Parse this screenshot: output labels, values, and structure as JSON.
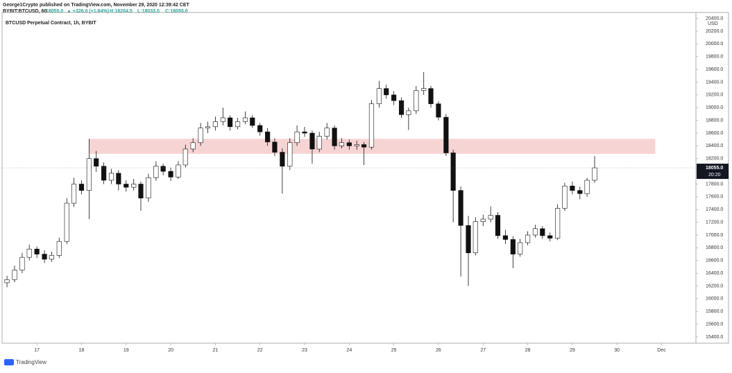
{
  "header": {
    "byline": "George1Crypto published on TradingView.com, November 29, 2020 12:39:42 CET",
    "symbol": "BYBIT:BTCUSD, 60",
    "price": "18055.0",
    "change": "▲ +326.0 (+1.84%)",
    "high": "H:18204.5",
    "low": "L:18033.0",
    "close": "C:18055.0"
  },
  "footer": {
    "brand": "TradingView"
  },
  "chart_data": {
    "type": "candlestick",
    "title": "BTCUSD Perpetual Contract, 1h, BYBIT",
    "y_unit": "USD",
    "up_color": "#ffffff",
    "down_color": "#111111",
    "wick_color": "#111111",
    "grid": false,
    "xlim": [
      16.22,
      31.77
    ],
    "ylim": [
      15302,
      20494
    ],
    "xticks": [
      17,
      18,
      19,
      20,
      21,
      22,
      23,
      24,
      25,
      26,
      27,
      28,
      29,
      30,
      {
        "value": 31,
        "label": "Dec"
      }
    ],
    "yticks": [
      {
        "value": 15400,
        "label": "15400.0"
      },
      {
        "value": 15600,
        "label": "15600.0"
      },
      {
        "value": 15800,
        "label": "15800.0"
      },
      {
        "value": 16000,
        "label": "16000.0"
      },
      {
        "value": 16200,
        "label": "16200.0"
      },
      {
        "value": 16400,
        "label": "16400.0"
      },
      {
        "value": 16600,
        "label": "16600.0"
      },
      {
        "value": 16800,
        "label": "16800.0"
      },
      {
        "value": 17000,
        "label": "17000.0"
      },
      {
        "value": 17200,
        "label": "17200.0"
      },
      {
        "value": 17400,
        "label": "17400.0"
      },
      {
        "value": 17600,
        "label": "17600.0"
      },
      {
        "value": 17800,
        "label": "17800.0"
      },
      {
        "value": 18000,
        "label": "18000.0"
      },
      {
        "value": 18200,
        "label": "18200.0"
      },
      {
        "value": 18400,
        "label": "18400.0"
      },
      {
        "value": 18600,
        "label": "18600.0"
      },
      {
        "value": 18800,
        "label": "18800.0"
      },
      {
        "value": 19000,
        "label": "19000.0"
      },
      {
        "value": 19200,
        "label": "19200.0"
      },
      {
        "value": 19400,
        "label": "19400.0"
      },
      {
        "value": 19600,
        "label": "19600.0"
      },
      {
        "value": 19800,
        "label": "19800.0"
      },
      {
        "value": 20000,
        "label": "20000.0"
      },
      {
        "value": 20200,
        "label": "20200.0"
      },
      {
        "value": 20400,
        "label": "20400.0"
      }
    ],
    "zone": {
      "low": 18275,
      "high": 18510,
      "x_start": 18.17,
      "x_end": 30.86,
      "color": "#f6cccc"
    },
    "last_price": {
      "value": 18055,
      "label": "18055.0"
    },
    "countdown": "20:20",
    "x": [
      16.33,
      16.5,
      16.67,
      16.83,
      17,
      17.17,
      17.33,
      17.5,
      17.67,
      17.83,
      18,
      18.17,
      18.33,
      18.5,
      18.67,
      18.83,
      19,
      19.17,
      19.33,
      19.5,
      19.67,
      19.83,
      20,
      20.17,
      20.33,
      20.5,
      20.67,
      20.83,
      21,
      21.17,
      21.33,
      21.5,
      21.67,
      21.83,
      22,
      22.17,
      22.33,
      22.5,
      22.67,
      22.83,
      23,
      23.17,
      23.33,
      23.5,
      23.67,
      23.83,
      24,
      24.17,
      24.33,
      24.5,
      24.67,
      24.83,
      25,
      25.17,
      25.33,
      25.5,
      25.67,
      25.83,
      26,
      26.17,
      26.33,
      26.5,
      26.67,
      26.83,
      27,
      27.17,
      27.33,
      27.5,
      27.67,
      27.83,
      28,
      28.17,
      28.33,
      28.5,
      28.67,
      28.83,
      29,
      29.17,
      29.33,
      29.5
    ],
    "ohlc": [
      [
        16250,
        16360,
        16180,
        16300
      ],
      [
        16300,
        16520,
        16260,
        16450
      ],
      [
        16450,
        16720,
        16400,
        16650
      ],
      [
        16650,
        16850,
        16600,
        16780
      ],
      [
        16780,
        16820,
        16640,
        16700
      ],
      [
        16700,
        16760,
        16560,
        16620
      ],
      [
        16620,
        16740,
        16580,
        16680
      ],
      [
        16680,
        16960,
        16640,
        16900
      ],
      [
        16900,
        17580,
        16860,
        17500
      ],
      [
        17500,
        17900,
        17440,
        17800
      ],
      [
        17800,
        17860,
        17640,
        17700
      ],
      [
        17700,
        18510,
        17250,
        18200
      ],
      [
        18200,
        18320,
        17990,
        18080
      ],
      [
        18080,
        18140,
        17800,
        17860
      ],
      [
        17860,
        18040,
        17800,
        17970
      ],
      [
        17970,
        18020,
        17700,
        17800
      ],
      [
        17800,
        17860,
        17680,
        17750
      ],
      [
        17750,
        17880,
        17700,
        17800
      ],
      [
        17800,
        17840,
        17380,
        17580
      ],
      [
        17580,
        17960,
        17520,
        17900
      ],
      [
        17900,
        18160,
        17850,
        18080
      ],
      [
        18080,
        18120,
        17940,
        18000
      ],
      [
        18000,
        18060,
        17850,
        17910
      ],
      [
        17910,
        18160,
        17880,
        18100
      ],
      [
        18100,
        18420,
        18060,
        18350
      ],
      [
        18350,
        18520,
        18300,
        18450
      ],
      [
        18450,
        18760,
        18400,
        18680
      ],
      [
        18680,
        18780,
        18600,
        18700
      ],
      [
        18700,
        18860,
        18640,
        18780
      ],
      [
        18780,
        19000,
        18720,
        18840
      ],
      [
        18840,
        18880,
        18640,
        18700
      ],
      [
        18700,
        18840,
        18660,
        18780
      ],
      [
        18780,
        18940,
        18740,
        18840
      ],
      [
        18840,
        18880,
        18680,
        18720
      ],
      [
        18720,
        18760,
        18560,
        18620
      ],
      [
        18620,
        18680,
        18400,
        18460
      ],
      [
        18460,
        18520,
        18240,
        18300
      ],
      [
        18300,
        18360,
        17650,
        18080
      ],
      [
        18080,
        18520,
        18020,
        18450
      ],
      [
        18450,
        18720,
        18400,
        18620
      ],
      [
        18620,
        18700,
        18540,
        18600
      ],
      [
        18600,
        18640,
        18120,
        18350
      ],
      [
        18350,
        18620,
        18300,
        18550
      ],
      [
        18550,
        18760,
        18500,
        18680
      ],
      [
        18680,
        18720,
        18340,
        18400
      ],
      [
        18400,
        18520,
        18360,
        18450
      ],
      [
        18450,
        18500,
        18340,
        18400
      ],
      [
        18400,
        18480,
        18340,
        18420
      ],
      [
        18420,
        18460,
        18100,
        18380
      ],
      [
        18380,
        19120,
        18340,
        19060
      ],
      [
        19060,
        19420,
        19000,
        19300
      ],
      [
        19300,
        19360,
        19140,
        19200
      ],
      [
        19200,
        19260,
        19040,
        19110
      ],
      [
        19110,
        19160,
        18840,
        18890
      ],
      [
        18890,
        19000,
        18650,
        18950
      ],
      [
        18950,
        19340,
        18900,
        19270
      ],
      [
        19270,
        19560,
        19200,
        19300
      ],
      [
        19300,
        19340,
        19000,
        19060
      ],
      [
        19060,
        19100,
        18800,
        18850
      ],
      [
        18850,
        18900,
        18240,
        18290
      ],
      [
        18290,
        18340,
        17200,
        17700
      ],
      [
        17700,
        17760,
        16350,
        17150
      ],
      [
        17150,
        17300,
        16200,
        16720
      ],
      [
        16720,
        17280,
        16680,
        17210
      ],
      [
        17210,
        17320,
        17140,
        17250
      ],
      [
        17250,
        17450,
        17200,
        17310
      ],
      [
        17310,
        17360,
        16940,
        16990
      ],
      [
        16990,
        17080,
        16860,
        16930
      ],
      [
        16930,
        16980,
        16480,
        16700
      ],
      [
        16700,
        16940,
        16660,
        16880
      ],
      [
        16880,
        17060,
        16840,
        17000
      ],
      [
        17000,
        17160,
        16960,
        17100
      ],
      [
        17100,
        17140,
        16940,
        16990
      ],
      [
        16990,
        17040,
        16900,
        16950
      ],
      [
        16950,
        17480,
        16920,
        17420
      ],
      [
        17420,
        17820,
        17380,
        17770
      ],
      [
        17770,
        17840,
        17640,
        17700
      ],
      [
        17700,
        17760,
        17560,
        17650
      ],
      [
        17650,
        17900,
        17600,
        17860
      ],
      [
        17860,
        18240,
        17820,
        18055
      ]
    ]
  }
}
